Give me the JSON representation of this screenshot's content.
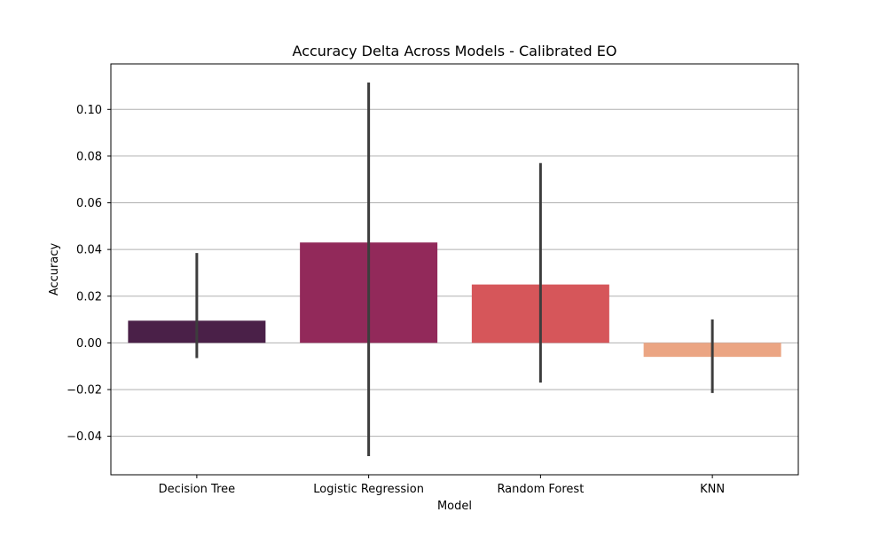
{
  "chart_data": {
    "type": "bar",
    "title": "Accuracy Delta Across Models - Calibrated EO",
    "xlabel": "Model",
    "ylabel": "Accuracy",
    "categories": [
      "Decision Tree",
      "Logistic Regression",
      "Random Forest",
      "KNN"
    ],
    "values": [
      0.0095,
      0.043,
      0.025,
      -0.006
    ],
    "error_low": [
      -0.0065,
      -0.0485,
      -0.017,
      -0.0215
    ],
    "error_high": [
      0.0385,
      0.1115,
      0.077,
      0.01
    ],
    "bar_colors": [
      "#4a2048",
      "#92295a",
      "#d6565a",
      "#eba583"
    ],
    "error_bar_color": "#3d3d3d",
    "ylim": [
      -0.0565,
      0.1195
    ],
    "yticks": [
      -0.04,
      -0.02,
      0.0,
      0.02,
      0.04,
      0.06,
      0.08,
      0.1
    ],
    "ytick_labels": [
      "−0.04",
      "−0.02",
      "0.00",
      "0.02",
      "0.04",
      "0.06",
      "0.08",
      "0.10"
    ],
    "grid": "y",
    "grid_color": "#b0b0b0"
  }
}
